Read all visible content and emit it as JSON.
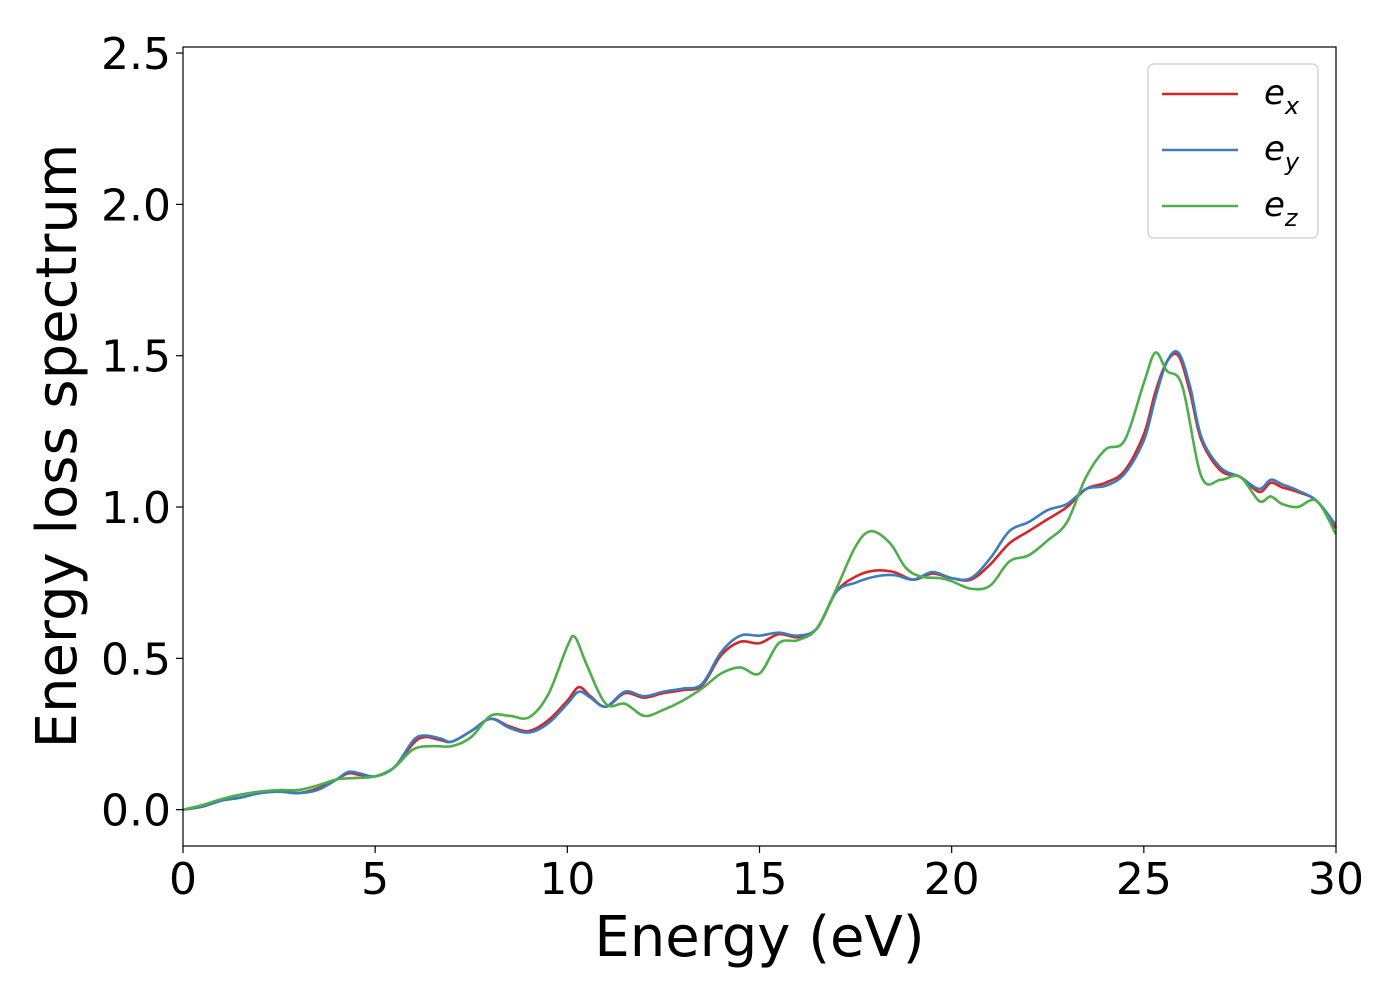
{
  "chart_data": {
    "type": "line",
    "title": "",
    "xlabel": "Energy (eV)",
    "ylabel": "Energy loss spectrum",
    "xlim": [
      0,
      30
    ],
    "ylim": [
      -0.12,
      2.52
    ],
    "xticks": [
      0,
      5,
      10,
      15,
      20,
      25,
      30
    ],
    "yticks": [
      0.0,
      0.5,
      1.0,
      1.5,
      2.0,
      2.5
    ],
    "xtick_labels": [
      "0",
      "5",
      "10",
      "15",
      "20",
      "25",
      "30"
    ],
    "ytick_labels": [
      "0.0",
      "0.5",
      "1.0",
      "1.5",
      "2.0",
      "2.5"
    ],
    "grid": false,
    "legend_position": "top-right",
    "series": [
      {
        "name": "e_x",
        "label_base": "e",
        "label_sub": "x",
        "color": "#d62728",
        "points": [
          [
            0,
            0.0
          ],
          [
            0.5,
            0.01
          ],
          [
            1,
            0.03
          ],
          [
            1.5,
            0.04
          ],
          [
            2,
            0.055
          ],
          [
            2.5,
            0.06
          ],
          [
            3,
            0.055
          ],
          [
            3.5,
            0.07
          ],
          [
            4,
            0.1
          ],
          [
            4.3,
            0.12
          ],
          [
            4.6,
            0.115
          ],
          [
            5,
            0.11
          ],
          [
            5.5,
            0.14
          ],
          [
            6,
            0.22
          ],
          [
            6.3,
            0.24
          ],
          [
            6.7,
            0.23
          ],
          [
            7,
            0.225
          ],
          [
            7.5,
            0.26
          ],
          [
            8,
            0.3
          ],
          [
            8.5,
            0.275
          ],
          [
            9,
            0.26
          ],
          [
            9.5,
            0.295
          ],
          [
            10,
            0.36
          ],
          [
            10.3,
            0.405
          ],
          [
            10.6,
            0.375
          ],
          [
            11,
            0.34
          ],
          [
            11.5,
            0.385
          ],
          [
            12,
            0.37
          ],
          [
            12.5,
            0.385
          ],
          [
            13,
            0.395
          ],
          [
            13.5,
            0.41
          ],
          [
            14,
            0.51
          ],
          [
            14.5,
            0.555
          ],
          [
            15,
            0.55
          ],
          [
            15.5,
            0.58
          ],
          [
            16,
            0.57
          ],
          [
            16.5,
            0.6
          ],
          [
            17,
            0.72
          ],
          [
            17.5,
            0.77
          ],
          [
            18,
            0.79
          ],
          [
            18.5,
            0.785
          ],
          [
            19,
            0.76
          ],
          [
            19.5,
            0.78
          ],
          [
            20,
            0.765
          ],
          [
            20.5,
            0.76
          ],
          [
            21,
            0.81
          ],
          [
            21.5,
            0.88
          ],
          [
            22,
            0.92
          ],
          [
            22.5,
            0.96
          ],
          [
            23,
            1.0
          ],
          [
            23.5,
            1.06
          ],
          [
            24,
            1.08
          ],
          [
            24.5,
            1.12
          ],
          [
            25,
            1.24
          ],
          [
            25.3,
            1.38
          ],
          [
            25.6,
            1.48
          ],
          [
            25.9,
            1.5
          ],
          [
            26.2,
            1.38
          ],
          [
            26.5,
            1.22
          ],
          [
            27,
            1.12
          ],
          [
            27.5,
            1.1
          ],
          [
            28,
            1.05
          ],
          [
            28.3,
            1.08
          ],
          [
            28.6,
            1.065
          ],
          [
            29,
            1.05
          ],
          [
            29.5,
            1.02
          ],
          [
            30,
            0.93
          ]
        ]
      },
      {
        "name": "e_y",
        "label_base": "e",
        "label_sub": "y",
        "color": "#3a7dbf",
        "points": [
          [
            0,
            0.0
          ],
          [
            0.5,
            0.01
          ],
          [
            1,
            0.03
          ],
          [
            1.5,
            0.04
          ],
          [
            2,
            0.055
          ],
          [
            2.5,
            0.06
          ],
          [
            3,
            0.055
          ],
          [
            3.5,
            0.065
          ],
          [
            4,
            0.1
          ],
          [
            4.3,
            0.125
          ],
          [
            4.6,
            0.12
          ],
          [
            5,
            0.11
          ],
          [
            5.5,
            0.14
          ],
          [
            6,
            0.23
          ],
          [
            6.3,
            0.245
          ],
          [
            6.7,
            0.235
          ],
          [
            7,
            0.225
          ],
          [
            7.5,
            0.26
          ],
          [
            8,
            0.3
          ],
          [
            8.5,
            0.27
          ],
          [
            9,
            0.255
          ],
          [
            9.5,
            0.285
          ],
          [
            10,
            0.35
          ],
          [
            10.3,
            0.39
          ],
          [
            10.6,
            0.37
          ],
          [
            11,
            0.34
          ],
          [
            11.5,
            0.39
          ],
          [
            12,
            0.375
          ],
          [
            12.5,
            0.39
          ],
          [
            13,
            0.4
          ],
          [
            13.5,
            0.415
          ],
          [
            14,
            0.52
          ],
          [
            14.5,
            0.575
          ],
          [
            15,
            0.575
          ],
          [
            15.5,
            0.585
          ],
          [
            16,
            0.575
          ],
          [
            16.5,
            0.6
          ],
          [
            17,
            0.72
          ],
          [
            17.5,
            0.75
          ],
          [
            18,
            0.77
          ],
          [
            18.5,
            0.775
          ],
          [
            19,
            0.76
          ],
          [
            19.5,
            0.785
          ],
          [
            20,
            0.765
          ],
          [
            20.5,
            0.765
          ],
          [
            21,
            0.83
          ],
          [
            21.5,
            0.92
          ],
          [
            22,
            0.95
          ],
          [
            22.5,
            0.99
          ],
          [
            23,
            1.01
          ],
          [
            23.5,
            1.06
          ],
          [
            24,
            1.07
          ],
          [
            24.5,
            1.11
          ],
          [
            25,
            1.22
          ],
          [
            25.3,
            1.36
          ],
          [
            25.6,
            1.48
          ],
          [
            25.9,
            1.51
          ],
          [
            26.2,
            1.4
          ],
          [
            26.5,
            1.23
          ],
          [
            27,
            1.13
          ],
          [
            27.5,
            1.1
          ],
          [
            28,
            1.06
          ],
          [
            28.3,
            1.09
          ],
          [
            28.6,
            1.075
          ],
          [
            29,
            1.055
          ],
          [
            29.5,
            1.02
          ],
          [
            30,
            0.94
          ]
        ]
      },
      {
        "name": "e_z",
        "label_base": "e",
        "label_sub": "z",
        "color": "#4daf4a",
        "points": [
          [
            0,
            0.0
          ],
          [
            0.5,
            0.015
          ],
          [
            1,
            0.035
          ],
          [
            1.5,
            0.05
          ],
          [
            2,
            0.06
          ],
          [
            2.5,
            0.065
          ],
          [
            3,
            0.065
          ],
          [
            3.5,
            0.08
          ],
          [
            4,
            0.1
          ],
          [
            4.5,
            0.105
          ],
          [
            5,
            0.11
          ],
          [
            5.5,
            0.14
          ],
          [
            6,
            0.2
          ],
          [
            6.5,
            0.21
          ],
          [
            7,
            0.21
          ],
          [
            7.5,
            0.24
          ],
          [
            8,
            0.31
          ],
          [
            8.5,
            0.31
          ],
          [
            9,
            0.305
          ],
          [
            9.5,
            0.38
          ],
          [
            10,
            0.54
          ],
          [
            10.2,
            0.57
          ],
          [
            10.5,
            0.48
          ],
          [
            11,
            0.35
          ],
          [
            11.5,
            0.35
          ],
          [
            12,
            0.31
          ],
          [
            12.5,
            0.33
          ],
          [
            13,
            0.36
          ],
          [
            13.5,
            0.4
          ],
          [
            14,
            0.45
          ],
          [
            14.5,
            0.47
          ],
          [
            15,
            0.45
          ],
          [
            15.5,
            0.55
          ],
          [
            16,
            0.56
          ],
          [
            16.5,
            0.6
          ],
          [
            17,
            0.73
          ],
          [
            17.5,
            0.87
          ],
          [
            17.9,
            0.92
          ],
          [
            18.4,
            0.88
          ],
          [
            18.8,
            0.8
          ],
          [
            19.2,
            0.77
          ],
          [
            19.7,
            0.765
          ],
          [
            20,
            0.755
          ],
          [
            20.5,
            0.73
          ],
          [
            21,
            0.74
          ],
          [
            21.5,
            0.82
          ],
          [
            22,
            0.84
          ],
          [
            22.5,
            0.89
          ],
          [
            23,
            0.95
          ],
          [
            23.5,
            1.1
          ],
          [
            24,
            1.19
          ],
          [
            24.5,
            1.22
          ],
          [
            25,
            1.41
          ],
          [
            25.3,
            1.51
          ],
          [
            25.6,
            1.45
          ],
          [
            26,
            1.4
          ],
          [
            26.5,
            1.1
          ],
          [
            27,
            1.09
          ],
          [
            27.5,
            1.1
          ],
          [
            28,
            1.02
          ],
          [
            28.3,
            1.035
          ],
          [
            28.6,
            1.01
          ],
          [
            29,
            1.0
          ],
          [
            29.5,
            1.02
          ],
          [
            30,
            0.91
          ]
        ]
      }
    ]
  }
}
